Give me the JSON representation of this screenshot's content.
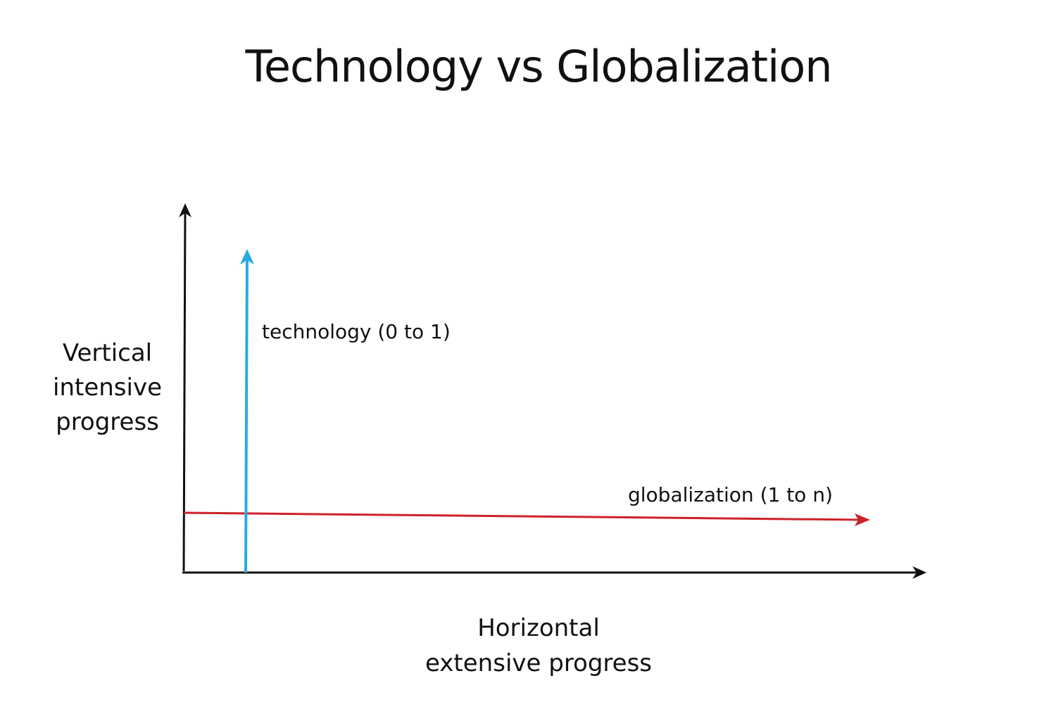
{
  "title": "Technology vs Globalization",
  "y_axis_label": [
    "Vertical",
    "intensive",
    "progress"
  ],
  "x_axis_label": [
    "Horizontal",
    "extensive progress"
  ],
  "arrows": {
    "technology": {
      "label": "technology (0 to 1)",
      "color": "#29ABE2"
    },
    "globalization": {
      "label": "globalization (1 to n)",
      "color": "#CC2229"
    }
  },
  "axis_color": "#111111"
}
